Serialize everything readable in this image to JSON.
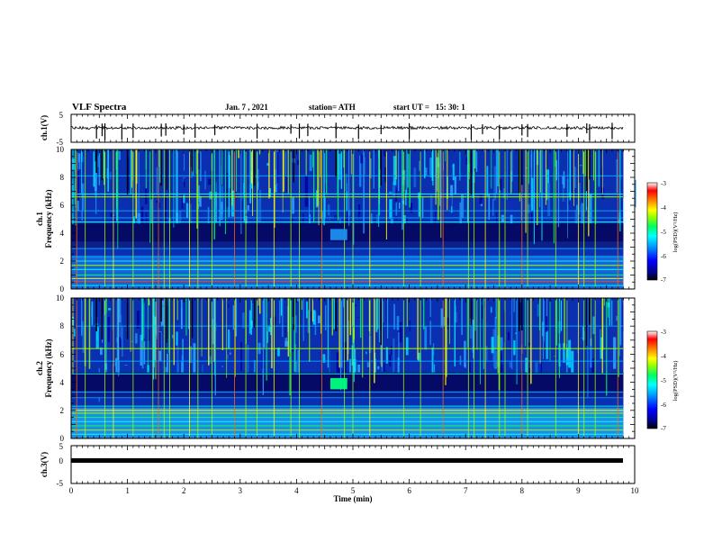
{
  "header": {
    "title": "VLF Spectra",
    "date": "Jan. 7 , 2021",
    "station": "station= ATH",
    "start_time": "start UT =   15: 30: 1"
  },
  "chart_data": [
    {
      "type": "line",
      "ylabel": "ch.1(V)",
      "ylim": [
        -5,
        5
      ],
      "y_ticks": [
        "5",
        "-5"
      ],
      "xlim": [
        0,
        10
      ]
    },
    {
      "type": "heatmap",
      "ylabel_line1": "ch.1",
      "ylabel_line2": "Frequency (kHz)",
      "ylim": [
        0,
        10
      ],
      "y_ticks": [
        "0",
        "2",
        "4",
        "6",
        "8",
        "10"
      ],
      "xlim": [
        0,
        10
      ],
      "colorbar": {
        "label": "log(PSD)(V²/Hz)",
        "range": [
          -7,
          -3
        ],
        "ticks": [
          "-3",
          "-4",
          "-5",
          "-6",
          "-7"
        ]
      }
    },
    {
      "type": "heatmap",
      "ylabel_line1": "ch.2",
      "ylabel_line2": "Frequency (kHz)",
      "ylim": [
        0,
        10
      ],
      "y_ticks": [
        "0",
        "2",
        "4",
        "6",
        "8",
        "10"
      ],
      "xlim": [
        0,
        10
      ],
      "colorbar": {
        "label": "log(PSD)(V²/Hz)",
        "range": [
          -7,
          -3
        ],
        "ticks": [
          "-3",
          "-4",
          "-5",
          "-6",
          "-7"
        ]
      }
    },
    {
      "type": "line",
      "ylabel": "ch.3(V)",
      "ylim": [
        -5,
        5
      ],
      "y_ticks": [
        "5",
        "0",
        "-5"
      ],
      "xlim": [
        0,
        10
      ]
    }
  ],
  "x_axis": {
    "label": "Time (min)",
    "ticks": [
      "0",
      "1",
      "2",
      "3",
      "4",
      "5",
      "6",
      "7",
      "8",
      "9",
      "10"
    ]
  },
  "colors": {
    "spectrogram_bg": "#05218f",
    "colormap": [
      "#000000",
      "#00008f",
      "#0000ff",
      "#00a0ff",
      "#00ffff",
      "#00ff60",
      "#9aff00",
      "#ffff00",
      "#ff8000",
      "#ff0000",
      "#ffffff"
    ]
  }
}
